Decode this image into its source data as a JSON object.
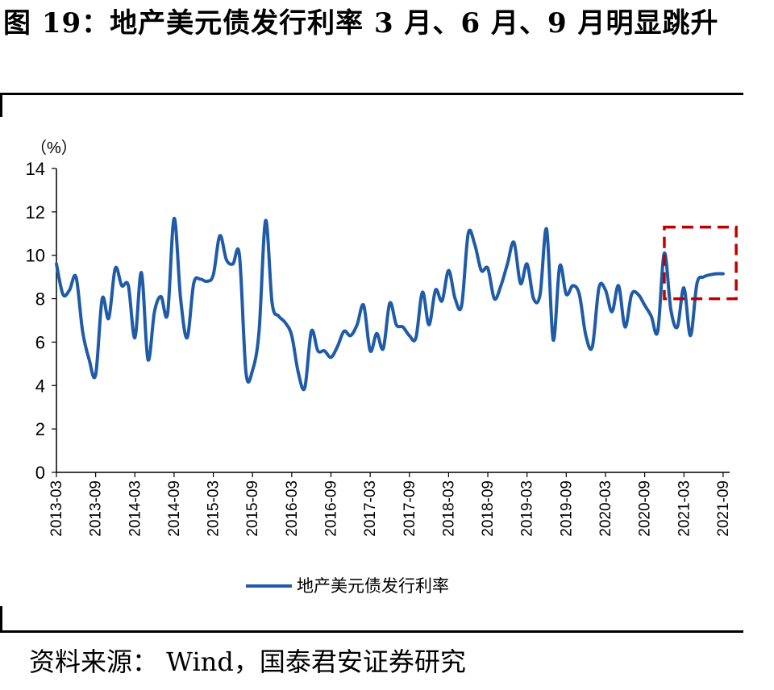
{
  "figure": {
    "caption": "图  19：地产美元债发行利率 3 月、6 月、9 月明显跳升",
    "source": "资料来源：  Wind，国泰君安证券研究"
  },
  "chart_data": {
    "type": "line",
    "ylabel": "（%）",
    "ylim": [
      0,
      14
    ],
    "yticks": [
      0,
      2,
      4,
      6,
      8,
      10,
      12,
      14
    ],
    "xlim": [
      "2013-03",
      "2021-10"
    ],
    "xticks": [
      "2013-03",
      "2013-09",
      "2014-03",
      "2014-09",
      "2015-03",
      "2015-09",
      "2016-03",
      "2016-09",
      "2017-03",
      "2017-09",
      "2018-03",
      "2018-09",
      "2019-03",
      "2019-09",
      "2020-03",
      "2020-09",
      "2021-03",
      "2021-09"
    ],
    "legend_position": "bottom",
    "grid": false,
    "highlight_box": {
      "x": [
        "2020-12",
        "2021-11"
      ],
      "y": [
        8,
        11.3
      ],
      "color": "#c00000"
    },
    "series": [
      {
        "name": "地产美元债发行利率",
        "color": "#1f5ba8",
        "x": [
          "2013-03",
          "2013-04",
          "2013-05",
          "2013-06",
          "2013-07",
          "2013-08",
          "2013-09",
          "2013-10",
          "2013-11",
          "2013-12",
          "2014-01",
          "2014-02",
          "2014-03",
          "2014-04",
          "2014-05",
          "2014-06",
          "2014-07",
          "2014-08",
          "2014-09",
          "2014-10",
          "2014-11",
          "2014-12",
          "2015-01",
          "2015-02",
          "2015-03",
          "2015-04",
          "2015-05",
          "2015-06",
          "2015-07",
          "2015-08",
          "2015-09",
          "2015-10",
          "2015-11",
          "2015-12",
          "2016-01",
          "2016-02",
          "2016-03",
          "2016-04",
          "2016-05",
          "2016-06",
          "2016-07",
          "2016-08",
          "2016-09",
          "2016-10",
          "2016-11",
          "2016-12",
          "2017-01",
          "2017-02",
          "2017-03",
          "2017-04",
          "2017-05",
          "2017-06",
          "2017-07",
          "2017-08",
          "2017-09",
          "2017-10",
          "2017-11",
          "2017-12",
          "2018-01",
          "2018-02",
          "2018-03",
          "2018-04",
          "2018-05",
          "2018-06",
          "2018-07",
          "2018-08",
          "2018-09",
          "2018-10",
          "2018-11",
          "2018-12",
          "2019-01",
          "2019-02",
          "2019-03",
          "2019-04",
          "2019-05",
          "2019-06",
          "2019-07",
          "2019-08",
          "2019-09",
          "2019-10",
          "2019-11",
          "2019-12",
          "2020-01",
          "2020-02",
          "2020-03",
          "2020-04",
          "2020-05",
          "2020-06",
          "2020-07",
          "2020-08",
          "2020-09",
          "2020-10",
          "2020-11",
          "2020-12",
          "2021-01",
          "2021-02",
          "2021-03",
          "2021-04",
          "2021-05",
          "2021-06",
          "2021-07",
          "2021-08",
          "2021-09"
        ],
        "values": [
          9.6,
          8.2,
          8.4,
          9.0,
          6.5,
          5.2,
          4.5,
          8.0,
          7.1,
          9.4,
          8.6,
          8.6,
          6.2,
          9.2,
          5.2,
          7.4,
          8.1,
          7.3,
          11.7,
          8.0,
          6.2,
          8.7,
          8.9,
          8.8,
          9.1,
          10.9,
          9.8,
          9.6,
          10.0,
          4.6,
          4.7,
          6.5,
          11.6,
          7.8,
          7.2,
          6.9,
          6.3,
          4.6,
          3.9,
          6.5,
          5.6,
          5.6,
          5.3,
          5.8,
          6.5,
          6.3,
          6.8,
          7.7,
          5.6,
          6.4,
          5.7,
          7.8,
          6.8,
          6.7,
          6.3,
          6.2,
          8.3,
          6.8,
          8.4,
          7.9,
          9.3,
          8.0,
          7.7,
          11.0,
          10.5,
          9.3,
          9.4,
          8.0,
          8.6,
          9.6,
          10.6,
          8.7,
          9.6,
          8.0,
          8.2,
          11.2,
          6.1,
          9.5,
          8.2,
          8.6,
          8.2,
          6.3,
          5.8,
          8.5,
          8.4,
          7.4,
          8.6,
          6.7,
          8.2,
          8.2,
          7.7,
          7.2,
          6.5,
          10.1,
          7.5,
          6.7,
          8.5,
          6.3,
          8.7,
          9.0,
          9.1,
          9.15,
          9.15
        ]
      }
    ]
  }
}
